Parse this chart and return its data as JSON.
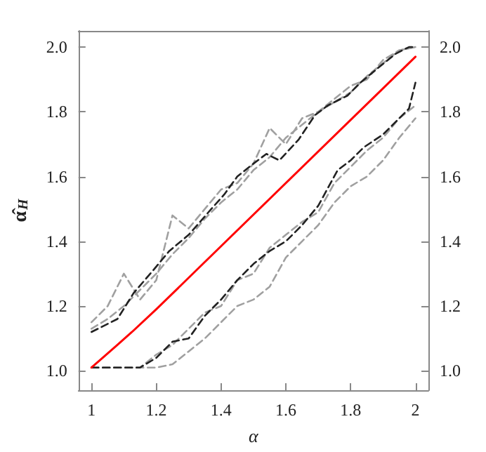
{
  "chart_data": {
    "type": "line",
    "xlabel": "α",
    "ylabel": "α̂$_{H}$",
    "xlim": [
      0.96,
      2.04
    ],
    "ylim": [
      0.94,
      2.05
    ],
    "xticks": [
      {
        "value": 1,
        "label": "1"
      },
      1.2,
      1.4,
      1.6,
      1.8,
      {
        "value": 2,
        "label": "2"
      }
    ],
    "yticks": [
      {
        "value": 1,
        "label": "1.0"
      },
      1.2,
      1.4,
      1.6,
      1.8,
      {
        "value": 2,
        "label": "2.0"
      }
    ],
    "y2lim": [
      0.94,
      2.05
    ],
    "y2ticks": [
      {
        "value": 1,
        "label": "1.0"
      },
      1.2,
      1.4,
      1.6,
      1.8,
      {
        "value": 2,
        "label": "2.0"
      }
    ],
    "grid": false,
    "marker": "none",
    "series": [
      {
        "color": "#a0a0a0",
        "line_style": "dashed",
        "x": [
          1,
          1.05,
          1.1,
          1.15,
          1.2,
          1.25,
          1.3,
          1.35,
          1.4,
          1.45,
          1.5,
          1.55,
          1.6,
          1.65,
          1.7,
          1.75,
          1.8,
          1.85,
          1.9,
          1.95,
          2
        ],
        "values": [
          1.15,
          1.2,
          1.3,
          1.22,
          1.28,
          1.48,
          1.44,
          1.5,
          1.56,
          1.58,
          1.64,
          1.75,
          1.7,
          1.78,
          1.8,
          1.84,
          1.88,
          1.9,
          1.96,
          1.99,
          2.0
        ]
      },
      {
        "color": "#a0a0a0",
        "line_style": "dashed",
        "x": [
          1,
          1.05,
          1.1,
          1.15,
          1.2,
          1.25,
          1.3,
          1.35,
          1.4,
          1.45,
          1.5,
          1.55,
          1.6,
          1.65,
          1.7,
          1.75,
          1.8,
          1.85,
          1.9,
          1.95,
          2
        ],
        "values": [
          1.13,
          1.16,
          1.2,
          1.25,
          1.3,
          1.36,
          1.41,
          1.47,
          1.52,
          1.56,
          1.62,
          1.66,
          1.72,
          1.76,
          1.8,
          1.83,
          1.86,
          1.91,
          1.95,
          1.99,
          2.0
        ]
      },
      {
        "color": "#a0a0a0",
        "line_style": "dashed",
        "x": [
          1,
          1.2,
          1.25,
          1.3,
          1.35,
          1.4,
          1.45,
          1.5,
          1.55,
          1.6,
          1.65,
          1.7,
          1.75,
          1.8,
          1.85,
          1.9,
          1.95,
          2
        ],
        "values": [
          1.01,
          1.01,
          1.02,
          1.06,
          1.1,
          1.15,
          1.2,
          1.22,
          1.26,
          1.35,
          1.4,
          1.45,
          1.52,
          1.57,
          1.6,
          1.65,
          1.72,
          1.78
        ]
      },
      {
        "color": "#a0a0a0",
        "line_style": "dashed",
        "x": [
          1,
          1.15,
          1.2,
          1.25,
          1.3,
          1.35,
          1.4,
          1.45,
          1.5,
          1.55,
          1.6,
          1.65,
          1.7,
          1.75,
          1.8,
          1.85,
          1.9,
          1.95,
          2
        ],
        "values": [
          1.01,
          1.01,
          1.05,
          1.08,
          1.13,
          1.18,
          1.2,
          1.28,
          1.3,
          1.38,
          1.42,
          1.46,
          1.49,
          1.58,
          1.63,
          1.68,
          1.72,
          1.78,
          1.82
        ]
      },
      {
        "color": "#222222",
        "line_style": "dashed",
        "x": [
          1,
          1.08,
          1.13,
          1.19,
          1.24,
          1.3,
          1.37,
          1.41,
          1.45,
          1.5,
          1.54,
          1.58,
          1.64,
          1.69,
          1.73,
          1.79,
          1.83,
          1.89,
          1.94,
          1.98,
          2
        ],
        "values": [
          1.12,
          1.16,
          1.24,
          1.31,
          1.37,
          1.42,
          1.5,
          1.545,
          1.6,
          1.64,
          1.67,
          1.65,
          1.715,
          1.79,
          1.82,
          1.85,
          1.89,
          1.94,
          1.98,
          2.0,
          2.0
        ]
      },
      {
        "color": "#222222",
        "line_style": "dashed",
        "x": [
          1,
          1.15,
          1.2,
          1.25,
          1.3,
          1.35,
          1.4,
          1.45,
          1.5,
          1.55,
          1.6,
          1.65,
          1.7,
          1.76,
          1.8,
          1.84,
          1.9,
          1.94,
          1.98,
          2
        ],
        "values": [
          1.01,
          1.01,
          1.04,
          1.09,
          1.1,
          1.17,
          1.22,
          1.28,
          1.33,
          1.37,
          1.4,
          1.45,
          1.51,
          1.62,
          1.65,
          1.69,
          1.73,
          1.77,
          1.81,
          1.89
        ]
      },
      {
        "color": "#ff0000",
        "line_style": "solid",
        "x": [
          1,
          1.08,
          1.125,
          1.2,
          2
        ],
        "values": [
          1.01,
          1.08,
          1.12,
          1.19,
          1.97
        ]
      }
    ]
  }
}
